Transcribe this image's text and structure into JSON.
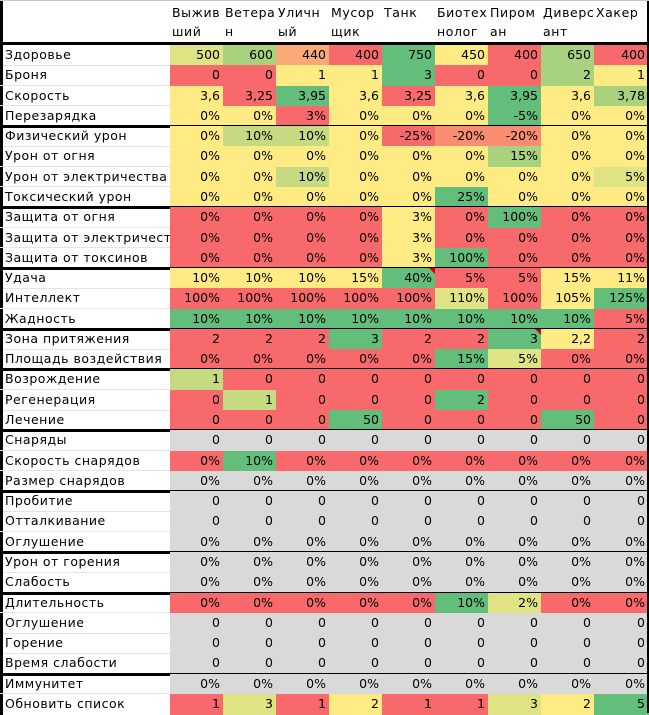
{
  "colors": {
    "R": "#F8696B",
    "G": "#63BE7B",
    "Y": "#FFEB84",
    "LG": "#C5DA81",
    "MG": "#A9D27F",
    "YG": "#DFE383",
    "O": "#FBAA77",
    "OR": "#FA8C71",
    "GR": "#D9D9D9"
  },
  "columns": [
    "Выжив\nший",
    "Ветера\nн",
    "Уличн\nый",
    "Мусор\nщик",
    "Танк",
    "Биотех\nнолог",
    "Пиром\nан",
    "Диверс\nант",
    "Хакер"
  ],
  "rows": [
    {
      "label": "Здоровье",
      "values": [
        "500",
        "600",
        "440",
        "400",
        "750",
        "450",
        "400",
        "650",
        "400"
      ],
      "colors": [
        "YG",
        "MG",
        "O",
        "R",
        "G",
        "Y",
        "R",
        "MG",
        "R"
      ],
      "sep_after": false
    },
    {
      "label": "Броня",
      "values": [
        "0",
        "0",
        "1",
        "1",
        "3",
        "0",
        "0",
        "2",
        "1"
      ],
      "colors": [
        "R",
        "R",
        "Y",
        "Y",
        "G",
        "R",
        "R",
        "MG",
        "Y"
      ],
      "sep_after": false
    },
    {
      "label": "Скорость",
      "values": [
        "3,6",
        "3,25",
        "3,95",
        "3,6",
        "3,25",
        "3,6",
        "3,95",
        "3,6",
        "3,78"
      ],
      "colors": [
        "Y",
        "R",
        "G",
        "Y",
        "R",
        "Y",
        "G",
        "Y",
        "MG"
      ],
      "sep_after": false
    },
    {
      "label": "Перезарядка",
      "values": [
        "0%",
        "0%",
        "3%",
        "0%",
        "0%",
        "0%",
        "-5%",
        "0%",
        "0%"
      ],
      "colors": [
        "Y",
        "Y",
        "R",
        "Y",
        "Y",
        "Y",
        "G",
        "Y",
        "Y"
      ],
      "sep_after": true
    },
    {
      "label": "Физический урон",
      "values": [
        "0%",
        "10%",
        "10%",
        "0%",
        "-25%",
        "-20%",
        "-20%",
        "0%",
        "0%"
      ],
      "colors": [
        "Y",
        "LG",
        "LG",
        "Y",
        "R",
        "OR",
        "OR",
        "Y",
        "Y"
      ],
      "sep_after": false
    },
    {
      "label": "Урон от огня",
      "values": [
        "0%",
        "0%",
        "0%",
        "0%",
        "0%",
        "0%",
        "15%",
        "0%",
        "0%"
      ],
      "colors": [
        "Y",
        "Y",
        "Y",
        "Y",
        "Y",
        "Y",
        "MG",
        "Y",
        "Y"
      ],
      "sep_after": false
    },
    {
      "label": "Урон от электричества",
      "values": [
        "0%",
        "0%",
        "10%",
        "0%",
        "0%",
        "0%",
        "0%",
        "0%",
        "5%"
      ],
      "colors": [
        "Y",
        "Y",
        "LG",
        "Y",
        "Y",
        "Y",
        "Y",
        "Y",
        "YG"
      ],
      "sep_after": false
    },
    {
      "label": "Токсический урон",
      "values": [
        "0%",
        "0%",
        "0%",
        "0%",
        "0%",
        "25%",
        "0%",
        "0%",
        "0%"
      ],
      "colors": [
        "Y",
        "Y",
        "Y",
        "Y",
        "Y",
        "G",
        "Y",
        "Y",
        "Y"
      ],
      "sep_after": true
    },
    {
      "label": "Защита от огня",
      "values": [
        "0%",
        "0%",
        "0%",
        "0%",
        "3%",
        "0%",
        "100%",
        "0%",
        "0%"
      ],
      "colors": [
        "R",
        "R",
        "R",
        "R",
        "Y",
        "R",
        "G",
        "R",
        "R"
      ],
      "sep_after": false
    },
    {
      "label": "Защита от электричества",
      "values": [
        "0%",
        "0%",
        "0%",
        "0%",
        "3%",
        "0%",
        "0%",
        "0%",
        "0%"
      ],
      "colors": [
        "R",
        "R",
        "R",
        "R",
        "Y",
        "R",
        "R",
        "R",
        "R"
      ],
      "sep_after": false
    },
    {
      "label": "Защита от токсинов",
      "values": [
        "0%",
        "0%",
        "0%",
        "0%",
        "3%",
        "100%",
        "0%",
        "0%",
        "0%"
      ],
      "colors": [
        "R",
        "R",
        "R",
        "R",
        "Y",
        "G",
        "R",
        "R",
        "R"
      ],
      "sep_after": true
    },
    {
      "label": "Удача",
      "values": [
        "10%",
        "10%",
        "10%",
        "15%",
        "40%",
        "5%",
        "5%",
        "15%",
        "11%"
      ],
      "colors": [
        "Y",
        "Y",
        "Y",
        "Y",
        "G",
        "R",
        "R",
        "Y",
        "Y"
      ],
      "notes": [
        false,
        false,
        false,
        false,
        true,
        false,
        false,
        false,
        false
      ],
      "sep_after": false
    },
    {
      "label": "Интеллект",
      "values": [
        "100%",
        "100%",
        "100%",
        "100%",
        "100%",
        "110%",
        "100%",
        "105%",
        "125%"
      ],
      "colors": [
        "R",
        "R",
        "R",
        "R",
        "R",
        "YG",
        "R",
        "Y",
        "G"
      ],
      "sep_after": false
    },
    {
      "label": "Жадность",
      "values": [
        "10%",
        "10%",
        "10%",
        "10%",
        "10%",
        "10%",
        "10%",
        "10%",
        "5%"
      ],
      "colors": [
        "G",
        "G",
        "G",
        "G",
        "G",
        "G",
        "G",
        "G",
        "R"
      ],
      "sep_after": true
    },
    {
      "label": "Зона притяжения",
      "values": [
        "2",
        "2",
        "2",
        "3",
        "2",
        "2",
        "3",
        "2,2",
        "2"
      ],
      "colors": [
        "R",
        "R",
        "R",
        "G",
        "R",
        "R",
        "G",
        "Y",
        "R"
      ],
      "notes": [
        false,
        false,
        false,
        false,
        false,
        false,
        true,
        false,
        false
      ],
      "sep_after": false
    },
    {
      "label": "Площадь воздействия",
      "values": [
        "0%",
        "0%",
        "0%",
        "0%",
        "0%",
        "15%",
        "5%",
        "0%",
        "0%"
      ],
      "colors": [
        "R",
        "R",
        "R",
        "R",
        "R",
        "G",
        "YG",
        "R",
        "R"
      ],
      "sep_after": true
    },
    {
      "label": "Возрождение",
      "values": [
        "1",
        "0",
        "0",
        "0",
        "0",
        "0",
        "0",
        "0",
        "0"
      ],
      "colors": [
        "LG",
        "R",
        "R",
        "R",
        "R",
        "R",
        "R",
        "R",
        "R"
      ],
      "sep_after": false
    },
    {
      "label": "Регенерация",
      "values": [
        "0",
        "1",
        "0",
        "0",
        "0",
        "2",
        "0",
        "0",
        "0"
      ],
      "colors": [
        "R",
        "LG",
        "R",
        "R",
        "R",
        "G",
        "R",
        "R",
        "R"
      ],
      "sep_after": false
    },
    {
      "label": "Лечение",
      "values": [
        "0",
        "0",
        "0",
        "50",
        "0",
        "0",
        "0",
        "50",
        "0"
      ],
      "colors": [
        "R",
        "R",
        "R",
        "G",
        "R",
        "R",
        "R",
        "G",
        "R"
      ],
      "sep_after": true
    },
    {
      "label": "Снаряды",
      "values": [
        "0",
        "0",
        "0",
        "0",
        "0",
        "0",
        "0",
        "0",
        "0"
      ],
      "colors": [
        "GR",
        "GR",
        "GR",
        "GR",
        "GR",
        "GR",
        "GR",
        "GR",
        "GR"
      ],
      "sep_after": false
    },
    {
      "label": "Скорость снарядов",
      "values": [
        "0%",
        "10%",
        "0%",
        "0%",
        "0%",
        "0%",
        "0%",
        "0%",
        "0%"
      ],
      "colors": [
        "R",
        "G",
        "R",
        "R",
        "R",
        "R",
        "R",
        "R",
        "R"
      ],
      "sep_after": false
    },
    {
      "label": "Размер снарядов",
      "values": [
        "0%",
        "0%",
        "0%",
        "0%",
        "0%",
        "0%",
        "0%",
        "0%",
        "0%"
      ],
      "colors": [
        "GR",
        "GR",
        "GR",
        "GR",
        "GR",
        "GR",
        "GR",
        "GR",
        "GR"
      ],
      "sep_after": true
    },
    {
      "label": "Пробитие",
      "values": [
        "0",
        "0",
        "0",
        "0",
        "0",
        "0",
        "0",
        "0",
        "0"
      ],
      "colors": [
        "GR",
        "GR",
        "GR",
        "GR",
        "GR",
        "GR",
        "GR",
        "GR",
        "GR"
      ],
      "sep_after": false
    },
    {
      "label": "Отталкивание",
      "values": [
        "0",
        "0",
        "0",
        "0",
        "0",
        "0",
        "0",
        "0",
        "0"
      ],
      "colors": [
        "GR",
        "GR",
        "GR",
        "GR",
        "GR",
        "GR",
        "GR",
        "GR",
        "GR"
      ],
      "sep_after": false
    },
    {
      "label": "Оглушение",
      "values": [
        "0%",
        "0%",
        "0%",
        "0%",
        "0%",
        "0%",
        "0%",
        "0%",
        "0%"
      ],
      "colors": [
        "GR",
        "GR",
        "GR",
        "GR",
        "GR",
        "GR",
        "GR",
        "GR",
        "GR"
      ],
      "sep_after": true
    },
    {
      "label": "Урон от горения",
      "values": [
        "0%",
        "0%",
        "0%",
        "0%",
        "0%",
        "0%",
        "0%",
        "0%",
        "0%"
      ],
      "colors": [
        "GR",
        "GR",
        "GR",
        "GR",
        "GR",
        "GR",
        "GR",
        "GR",
        "GR"
      ],
      "sep_after": false
    },
    {
      "label": "Слабость",
      "values": [
        "0%",
        "0%",
        "0%",
        "0%",
        "0%",
        "0%",
        "0%",
        "0%",
        "0%"
      ],
      "colors": [
        "GR",
        "GR",
        "GR",
        "GR",
        "GR",
        "GR",
        "GR",
        "GR",
        "GR"
      ],
      "sep_after": true
    },
    {
      "label": "Длительность",
      "values": [
        "0%",
        "0%",
        "0%",
        "0%",
        "0%",
        "10%",
        "2%",
        "0%",
        "0%"
      ],
      "colors": [
        "R",
        "R",
        "R",
        "R",
        "R",
        "G",
        "YG",
        "R",
        "R"
      ],
      "sep_after": false
    },
    {
      "label": "Оглушение",
      "values": [
        "0",
        "0",
        "0",
        "0",
        "0",
        "0",
        "0",
        "0",
        "0"
      ],
      "colors": [
        "GR",
        "GR",
        "GR",
        "GR",
        "GR",
        "GR",
        "GR",
        "GR",
        "GR"
      ],
      "sep_after": false
    },
    {
      "label": "Горение",
      "values": [
        "0",
        "0",
        "0",
        "0",
        "0",
        "0",
        "0",
        "0",
        "0"
      ],
      "colors": [
        "GR",
        "GR",
        "GR",
        "GR",
        "GR",
        "GR",
        "GR",
        "GR",
        "GR"
      ],
      "sep_after": false
    },
    {
      "label": "Время слабости",
      "values": [
        "0",
        "0",
        "0",
        "0",
        "0",
        "0",
        "0",
        "0",
        "0"
      ],
      "colors": [
        "GR",
        "GR",
        "GR",
        "GR",
        "GR",
        "GR",
        "GR",
        "GR",
        "GR"
      ],
      "sep_after": true
    },
    {
      "label": "Иммунитет",
      "values": [
        "0%",
        "0%",
        "0%",
        "0%",
        "0%",
        "0%",
        "0%",
        "0%",
        "0%"
      ],
      "colors": [
        "GR",
        "GR",
        "GR",
        "GR",
        "GR",
        "GR",
        "GR",
        "GR",
        "GR"
      ],
      "sep_after": false
    },
    {
      "label": "Обновить список",
      "values": [
        "1",
        "3",
        "1",
        "2",
        "1",
        "1",
        "3",
        "2",
        "5"
      ],
      "colors": [
        "R",
        "YG",
        "R",
        "Y",
        "R",
        "R",
        "YG",
        "Y",
        "G"
      ],
      "sep_after": false
    }
  ]
}
